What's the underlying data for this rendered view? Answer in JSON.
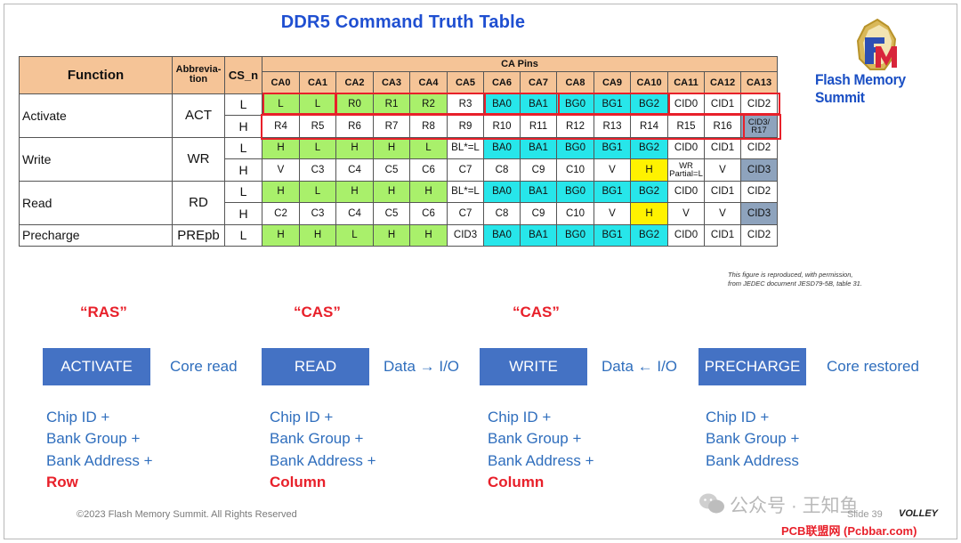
{
  "title": "DDR5  Command Truth Table",
  "logo_text": "Flash Memory Summit",
  "table": {
    "header": {
      "function": "Function",
      "abbreviation_line1": "Abbrevia-",
      "abbreviation_line2": "tion",
      "cs_n": "CS_n",
      "ca_pins": "CA Pins",
      "pins": [
        "CA0",
        "CA1",
        "CA2",
        "CA3",
        "CA4",
        "CA5",
        "CA6",
        "CA7",
        "CA8",
        "CA9",
        "CA10",
        "CA11",
        "CA12",
        "CA13"
      ]
    },
    "commands": [
      {
        "function": "Activate",
        "abbreviation": "ACT",
        "rows": [
          {
            "cs": "L",
            "cells": [
              "L",
              "L",
              "R0",
              "R1",
              "R2",
              "R3",
              "BA0",
              "BA1",
              "BG0",
              "BG1",
              "BG2",
              "CID0",
              "CID1",
              "CID2"
            ]
          },
          {
            "cs": "H",
            "cells": [
              "R4",
              "R5",
              "R6",
              "R7",
              "R8",
              "R9",
              "R10",
              "R11",
              "R12",
              "R13",
              "R14",
              "R15",
              "R16",
              "CID3/ R17"
            ]
          }
        ]
      },
      {
        "function": "Write",
        "abbreviation": "WR",
        "rows": [
          {
            "cs": "L",
            "cells": [
              "H",
              "L",
              "H",
              "H",
              "L",
              "BL*=L",
              "BA0",
              "BA1",
              "BG0",
              "BG1",
              "BG2",
              "CID0",
              "CID1",
              "CID2"
            ]
          },
          {
            "cs": "H",
            "cells": [
              "V",
              "C3",
              "C4",
              "C5",
              "C6",
              "C7",
              "C8",
              "C9",
              "C10",
              "V",
              "H",
              "WR Partial=L",
              "V",
              "CID3"
            ]
          }
        ]
      },
      {
        "function": "Read",
        "abbreviation": "RD",
        "rows": [
          {
            "cs": "L",
            "cells": [
              "H",
              "L",
              "H",
              "H",
              "H",
              "BL*=L",
              "BA0",
              "BA1",
              "BG0",
              "BG1",
              "BG2",
              "CID0",
              "CID1",
              "CID2"
            ]
          },
          {
            "cs": "H",
            "cells": [
              "C2",
              "C3",
              "C4",
              "C5",
              "C6",
              "C7",
              "C8",
              "C9",
              "C10",
              "V",
              "H",
              "V",
              "V",
              "CID3"
            ]
          }
        ]
      },
      {
        "function": "Precharge",
        "abbreviation": "PREpb",
        "rows": [
          {
            "cs": "L",
            "cells": [
              "H",
              "H",
              "L",
              "H",
              "H",
              "CID3",
              "BA0",
              "BA1",
              "BG0",
              "BG1",
              "BG2",
              "CID0",
              "CID1",
              "CID2"
            ]
          }
        ]
      }
    ],
    "colors": {
      "green": "#a9f06b",
      "cyan": "#27e6ea",
      "yellow": "#fff200",
      "slate": "#8ea3bd",
      "header": "#f5c497",
      "highlight_border": "#e8202a"
    }
  },
  "credit_line1": "This figure is reproduced, with permission,",
  "credit_line2": "from JEDEC document JESD79-5B, table 31.",
  "flow": {
    "phase_labels": [
      "“RAS”",
      "“CAS”",
      "“CAS”"
    ],
    "steps": [
      {
        "box": "ACTIVATE",
        "after": "Core read",
        "list": [
          "Chip ID +",
          "Bank Group +",
          "Bank Address +"
        ],
        "emphasis": "Row"
      },
      {
        "box": "READ",
        "after": "Data → I/O",
        "list": [
          "Chip ID +",
          "Bank Group +",
          "Bank Address +"
        ],
        "emphasis": "Column"
      },
      {
        "box": "WRITE",
        "after": "Data ← I/O",
        "list": [
          "Chip ID +",
          "Bank Group +",
          "Bank Address +"
        ],
        "emphasis": "Column"
      },
      {
        "box": "PRECHARGE",
        "after": "Core restored",
        "list": [
          "Chip ID +",
          "Bank Group +",
          "Bank Address"
        ],
        "emphasis": ""
      }
    ]
  },
  "footer": "©2023 Flash Memory Summit. All Rights Reserved",
  "slide_number": "Slide 39",
  "volley": "VOLLEY",
  "watermark": "公众号 · 王知鱼",
  "source_tag": "PCB联盟网 (Pcbbar.com)"
}
